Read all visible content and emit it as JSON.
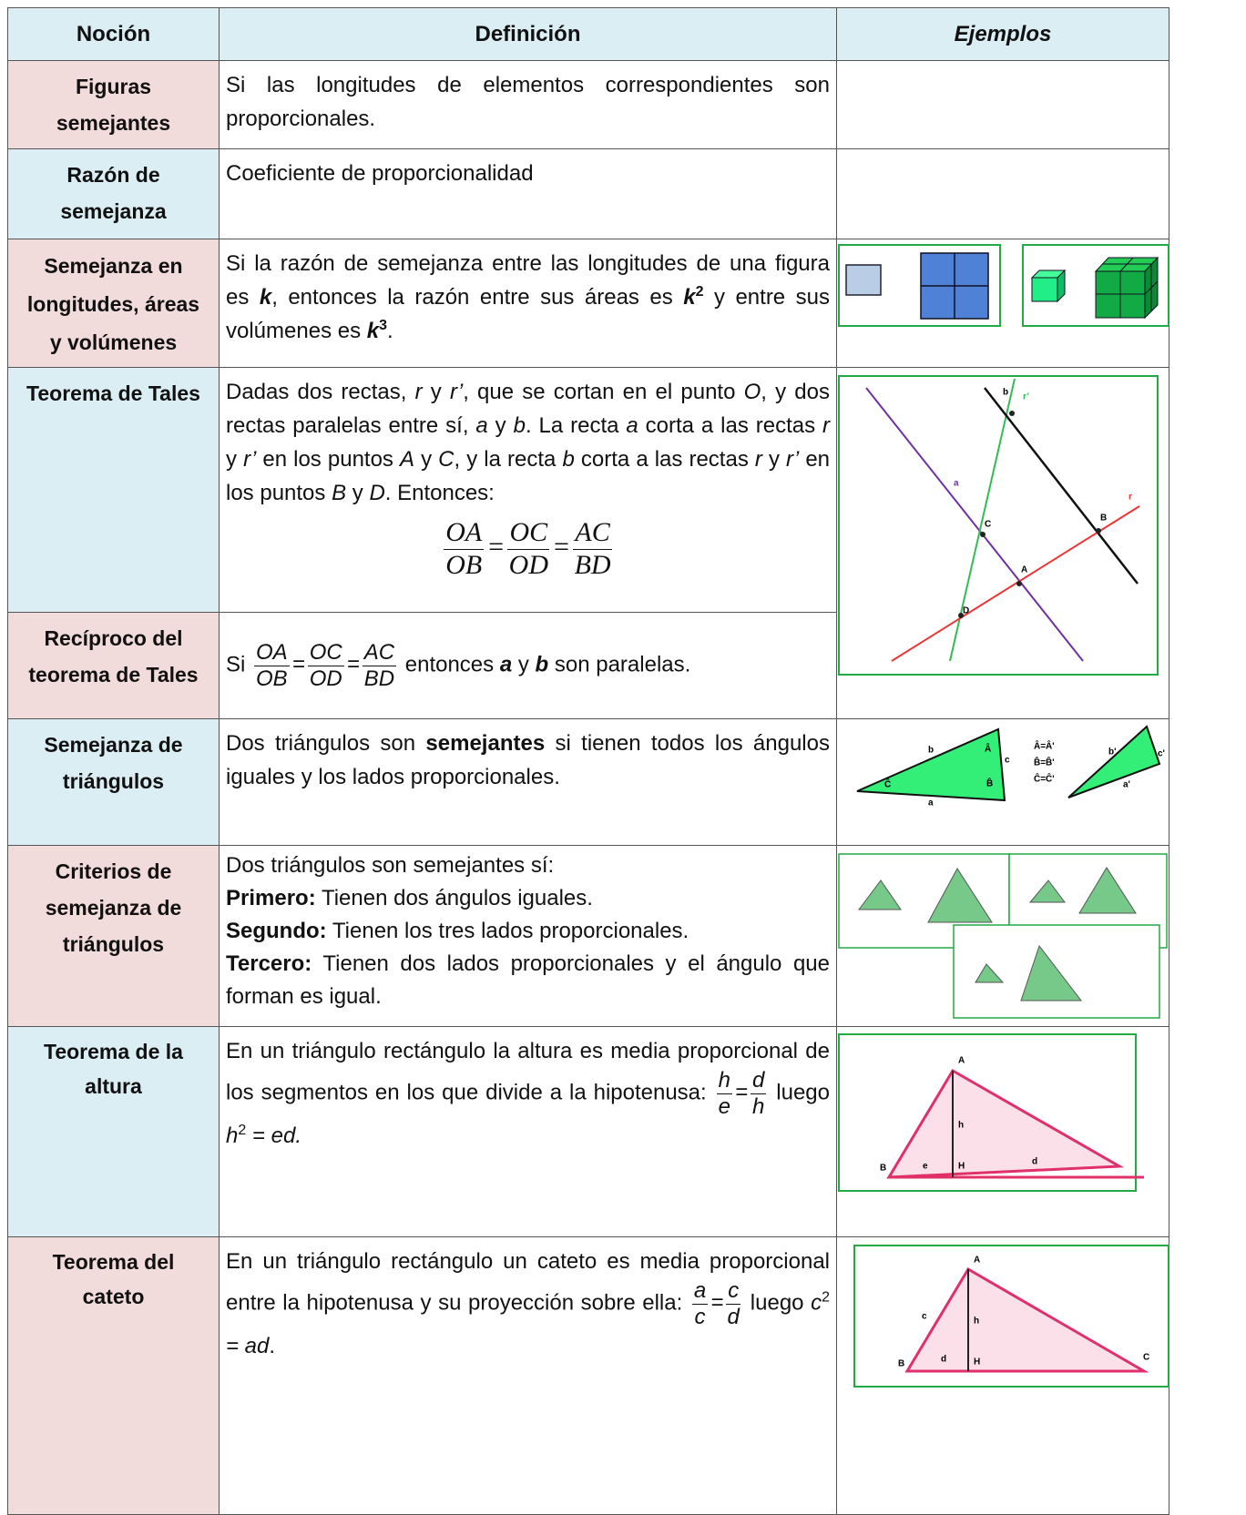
{
  "header": {
    "notion": "Noción",
    "definition": "Definición",
    "examples": "Ejemplos"
  },
  "rows": [
    {
      "notion": [
        "Figuras",
        "semejantes"
      ],
      "definition": [
        "Si las longitudes de elementos correspondientes son proporcionales."
      ]
    },
    {
      "notion": [
        "Razón de",
        "semejanza"
      ],
      "definition": [
        "Coeficiente de proporcionalidad"
      ]
    },
    {
      "notion": [
        "Semejanza en",
        "longitudes, áreas",
        "y volúmenes"
      ],
      "definition": [
        "Si la razón de semejanza entre las longitudes de una figura es ",
        "k",
        ", entonces la razón entre sus áreas es ",
        "k",
        "2",
        " y entre sus volúmenes es ",
        "k",
        "3",
        "."
      ]
    },
    {
      "notion": [
        "Teorema de Tales"
      ],
      "definition": [
        "Dadas dos rectas, ",
        "r",
        " y ",
        "r’",
        ", que se cortan en el punto ",
        "O",
        ", y dos rectas paralelas entre sí, ",
        "a",
        " y ",
        "b",
        ". La recta ",
        "a",
        " corta a las rectas ",
        "r",
        " y ",
        "r’",
        " en los puntos ",
        "A",
        " y ",
        "C",
        ", y la recta ",
        "b",
        " corta a las rectas ",
        "r",
        " y ",
        "r’",
        " en los puntos ",
        "B",
        " y ",
        "D",
        ". Entonces:"
      ],
      "formula": {
        "terms": [
          [
            "OA",
            "OB"
          ],
          [
            "OC",
            "OD"
          ],
          [
            "AC",
            "BD"
          ]
        ],
        "operator": "="
      },
      "example_labels": [
        "b",
        "r’",
        "a",
        "r",
        "C",
        "B",
        "A",
        "D"
      ]
    },
    {
      "notion": [
        "Recíproco del",
        "teorema de Tales"
      ],
      "definition": [
        "Si ",
        " entonces ",
        "a",
        " y ",
        "b",
        " son paralelas."
      ],
      "formula": {
        "terms": [
          [
            "OA",
            "OB"
          ],
          [
            "OC",
            "OD"
          ],
          [
            "AC",
            "BD"
          ]
        ],
        "operator": "="
      }
    },
    {
      "notion": [
        "Semejanza de",
        "triángulos"
      ],
      "definition": [
        "Dos triángulos son ",
        "semejantes",
        " si tienen todos los ángulos iguales y los lados proporcionales."
      ],
      "example_labels": [
        "b",
        "c",
        "a",
        "Â",
        "B̂",
        "Ĉ",
        "Â=Â'",
        "B̂=B̂'",
        "Ĉ=Ĉ'",
        "b'",
        "a'",
        "c'"
      ]
    },
    {
      "notion": [
        "Criterios de",
        "semejanza de",
        "triángulos"
      ],
      "definition": [
        "Dos triángulos son semejantes sí:",
        "Primero:",
        " Tienen dos ángulos iguales.",
        "Segundo:",
        " Tienen los tres lados proporcionales.",
        "Tercero:",
        " Tienen dos lados proporcionales y el ángulo que forman es igual."
      ]
    },
    {
      "notion": [
        "Teorema de la",
        "altura"
      ],
      "definition": [
        "En un triángulo rectángulo la altura es media proporcional de los segmentos en los que divide a la hipotenusa: ",
        " luego ",
        "h",
        "2",
        " = ed."
      ],
      "formula": {
        "terms": [
          [
            "h",
            "e"
          ],
          [
            "d",
            "h"
          ]
        ],
        "operator": "="
      },
      "example_labels": [
        "A",
        "h",
        "B",
        "e",
        "H",
        "d"
      ]
    },
    {
      "notion": [
        "Teorema del",
        "cateto"
      ],
      "definition": [
        "En un triángulo rectángulo un cateto es media proporcional entre la hipotenusa y su proyección sobre ella: ",
        " luego ",
        "c",
        "2",
        " = ad",
        "."
      ],
      "formula": {
        "terms": [
          [
            "a",
            "c"
          ],
          [
            "c",
            "d"
          ]
        ],
        "operator": "="
      },
      "example_labels": [
        "A",
        "c",
        "h",
        "B",
        "d",
        "H",
        "C"
      ]
    }
  ]
}
